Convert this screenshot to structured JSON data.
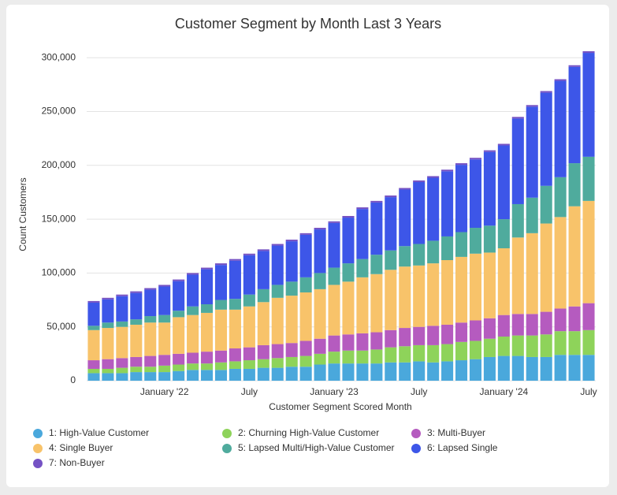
{
  "chart_data": {
    "type": "stacked_bar",
    "title": "Customer Segment by Month Last 3 Years",
    "x_label": "Customer Segment Scored Month",
    "y_label": "Count Customers",
    "categories": [
      null,
      null,
      null,
      null,
      null,
      "January '22",
      null,
      null,
      null,
      null,
      null,
      "July",
      null,
      null,
      null,
      null,
      null,
      "January '23",
      null,
      null,
      null,
      null,
      null,
      "July",
      null,
      null,
      null,
      null,
      null,
      "January '24",
      null,
      null,
      null,
      null,
      null,
      "July"
    ],
    "series": [
      {
        "name": "1: High-Value Customer",
        "color": "#4aa8dc",
        "values": [
          7000,
          7000,
          7000,
          8000,
          8000,
          8000,
          9000,
          10000,
          10000,
          10000,
          11000,
          11000,
          12000,
          12000,
          13000,
          13000,
          15000,
          16000,
          16000,
          16000,
          16000,
          17000,
          17000,
          18000,
          17000,
          18000,
          19000,
          20000,
          22000,
          23000,
          23000,
          22000,
          22000,
          24000,
          24000,
          24000
        ]
      },
      {
        "name": "2: Churning High-Value Customer",
        "color": "#8ed35a",
        "values": [
          4000,
          4000,
          5000,
          5000,
          5000,
          6000,
          6000,
          6000,
          6000,
          7000,
          7000,
          8000,
          8000,
          9000,
          9000,
          10000,
          10000,
          11000,
          12000,
          12000,
          13000,
          14000,
          15000,
          15000,
          16000,
          16000,
          17000,
          17000,
          17000,
          18000,
          19000,
          20000,
          21000,
          22000,
          22000,
          23000
        ]
      },
      {
        "name": "3: Multi-Buyer",
        "color": "#b55bbf",
        "values": [
          8000,
          9000,
          9000,
          9000,
          10000,
          10000,
          10000,
          10000,
          11000,
          11000,
          12000,
          12000,
          13000,
          13000,
          13000,
          14000,
          14000,
          15000,
          15000,
          16000,
          16000,
          16000,
          17000,
          17000,
          18000,
          18000,
          18000,
          19000,
          19000,
          20000,
          20000,
          20000,
          21000,
          21000,
          23000,
          25000
        ]
      },
      {
        "name": "4: Single Buyer",
        "color": "#f8c36a",
        "values": [
          28000,
          29000,
          29000,
          30000,
          31000,
          30000,
          34000,
          35000,
          36000,
          38000,
          36000,
          38000,
          40000,
          43000,
          44000,
          45000,
          46000,
          47000,
          49000,
          52000,
          54000,
          56000,
          57000,
          57000,
          58000,
          60000,
          61000,
          62000,
          61000,
          62000,
          71000,
          75000,
          82000,
          85000,
          93000,
          95000
        ]
      },
      {
        "name": "5: Lapsed Multi/High-Value Customer",
        "color": "#4fab9d",
        "values": [
          4000,
          5000,
          5000,
          5000,
          6000,
          7000,
          6000,
          8000,
          8000,
          9000,
          10000,
          11000,
          12000,
          12000,
          13000,
          14000,
          15000,
          16000,
          17000,
          17000,
          18000,
          18000,
          19000,
          20000,
          21000,
          22000,
          23000,
          24000,
          25000,
          27000,
          31000,
          33000,
          35000,
          37000,
          40000,
          41000
        ]
      },
      {
        "name": "6: Lapsed Single",
        "color": "#3d56e8",
        "values": [
          21500,
          21500,
          23500,
          24500,
          24500,
          26500,
          27500,
          29500,
          32500,
          32500,
          35500,
          36500,
          35500,
          36500,
          37500,
          39500,
          40500,
          41500,
          42500,
          46500,
          48500,
          49500,
          52500,
          57500,
          58500,
          60500,
          62500,
          63500,
          68500,
          68500,
          79500,
          84500,
          86500,
          89500,
          89500,
          96500
        ]
      },
      {
        "name": "7: Non-Buyer",
        "color": "#7552c4",
        "values": [
          1500,
          1500,
          1500,
          1500,
          1500,
          1500,
          1500,
          1500,
          1500,
          1500,
          1500,
          1500,
          1500,
          1500,
          1500,
          1500,
          1500,
          1500,
          1500,
          1500,
          1500,
          1500,
          1500,
          1500,
          1500,
          1500,
          1500,
          1500,
          1500,
          1500,
          1500,
          1500,
          1500,
          1500,
          1500,
          1500
        ]
      }
    ],
    "ylim": [
      0,
      306000
    ],
    "yticks": [
      0,
      {
        "value": 50000,
        "label": "50,000"
      },
      {
        "value": 100000,
        "label": "100,000"
      },
      {
        "value": 150000,
        "label": "150,000"
      },
      {
        "value": 200000,
        "label": "200,000"
      },
      {
        "value": 250000,
        "label": "250,000"
      },
      {
        "value": 300000,
        "label": "300,000"
      }
    ],
    "grid": true,
    "legend": "bottom"
  }
}
